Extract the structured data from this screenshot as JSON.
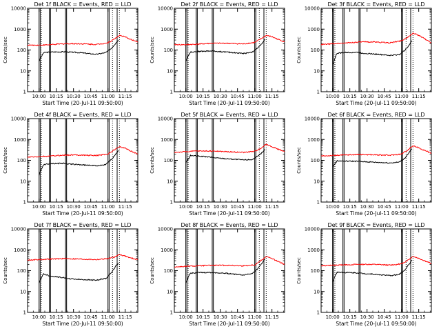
{
  "chart_data": [
    {
      "type": "line",
      "title": "Det 1f BLACK = Events, RED = LLD",
      "xlabel": "Start Time (20-Jul-11 09:50:00)",
      "ylabel": "Counts/sec",
      "y_scale": "log",
      "ylim": [
        1,
        10000
      ],
      "xlim": [
        "09:50",
        "11:26"
      ],
      "y_ticks": [
        "1",
        "10",
        "100",
        "1000",
        "10000"
      ],
      "x_ticks": [
        "10:00",
        "10:15",
        "10:30",
        "10:45",
        "11:00",
        "11:15"
      ],
      "vlines_solid": [
        "10:00",
        "10:01",
        "10:09",
        "10:10",
        "10:23",
        "10:24",
        "11:00",
        "11:01",
        "11:08"
      ],
      "vlines_dotted": [
        "10:02",
        "11:04",
        "11:10"
      ],
      "series": [
        {
          "color": "#000000",
          "x": [
            "10:00",
            "10:03",
            "10:04",
            "10:10",
            "10:23",
            "10:24",
            "10:35",
            "10:50",
            "10:58",
            "11:03",
            "11:07",
            "11:09"
          ],
          "y": [
            30,
            60,
            75,
            80,
            82,
            80,
            75,
            62,
            75,
            120,
            220,
            300
          ]
        },
        {
          "color": "#ff0000",
          "x": [
            "09:50",
            "10:00",
            "10:10",
            "10:23",
            "10:35",
            "10:50",
            "11:00",
            "11:06",
            "11:10",
            "11:15",
            "11:20",
            "11:26"
          ],
          "y": [
            170,
            170,
            180,
            200,
            200,
            185,
            220,
            350,
            500,
            420,
            320,
            240
          ]
        }
      ]
    },
    {
      "type": "line",
      "title": "Det 2f BLACK = Events, RED = LLD",
      "xlabel": "Start Time (20-Jul-11 09:50:00)",
      "ylabel": "Counts/sec",
      "y_scale": "log",
      "ylim": [
        1,
        10000
      ],
      "xlim": [
        "09:50",
        "11:26"
      ],
      "y_ticks": [
        "1",
        "10",
        "100",
        "1000",
        "10000"
      ],
      "x_ticks": [
        "10:00",
        "10:15",
        "10:30",
        "10:45",
        "11:00",
        "11:15"
      ],
      "vlines_solid": [
        "10:00",
        "10:01",
        "10:09",
        "10:10",
        "10:23",
        "10:24",
        "11:00",
        "11:01",
        "11:08"
      ],
      "vlines_dotted": [
        "10:02",
        "11:04",
        "11:10"
      ],
      "series": [
        {
          "color": "#000000",
          "x": [
            "10:00",
            "10:03",
            "10:04",
            "10:10",
            "10:23",
            "10:24",
            "10:35",
            "10:50",
            "10:58",
            "11:03",
            "11:07",
            "11:09"
          ],
          "y": [
            30,
            65,
            80,
            85,
            90,
            88,
            80,
            68,
            80,
            130,
            230,
            320
          ]
        },
        {
          "color": "#ff0000",
          "x": [
            "09:50",
            "10:00",
            "10:10",
            "10:23",
            "10:35",
            "10:50",
            "11:00",
            "11:06",
            "11:10",
            "11:15",
            "11:20",
            "11:26"
          ],
          "y": [
            180,
            180,
            190,
            210,
            210,
            195,
            230,
            360,
            500,
            430,
            330,
            250
          ]
        }
      ]
    },
    {
      "type": "line",
      "title": "Det 3f BLACK = Events, RED = LLD",
      "xlabel": "Start Time (20-Jul-11 09:50:00)",
      "ylabel": "Counts/sec",
      "y_scale": "log",
      "ylim": [
        1,
        10000
      ],
      "xlim": [
        "09:50",
        "11:26"
      ],
      "y_ticks": [
        "1",
        "10",
        "100",
        "1000",
        "10000"
      ],
      "x_ticks": [
        "10:00",
        "10:15",
        "10:30",
        "10:45",
        "11:00",
        "11:15"
      ],
      "vlines_solid": [
        "10:00",
        "10:01",
        "10:09",
        "10:10",
        "10:23",
        "10:24",
        "11:00",
        "11:01",
        "11:08"
      ],
      "vlines_dotted": [
        "10:02",
        "11:04",
        "11:10"
      ],
      "series": [
        {
          "color": "#000000",
          "x": [
            "10:00",
            "10:03",
            "10:04",
            "10:10",
            "10:23",
            "10:24",
            "10:35",
            "10:50",
            "10:58",
            "11:03",
            "11:07",
            "11:09"
          ],
          "y": [
            20,
            55,
            70,
            75,
            78,
            72,
            65,
            55,
            60,
            100,
            180,
            280
          ]
        },
        {
          "color": "#ff0000",
          "x": [
            "09:50",
            "10:00",
            "10:10",
            "10:23",
            "10:35",
            "10:50",
            "11:00",
            "11:06",
            "11:10",
            "11:15",
            "11:20",
            "11:26"
          ],
          "y": [
            180,
            200,
            215,
            240,
            245,
            220,
            280,
            420,
            650,
            500,
            350,
            220
          ]
        }
      ]
    },
    {
      "type": "line",
      "title": "Det 4f BLACK = Events, RED = LLD",
      "xlabel": "Start Time (20-Jul-11 09:50:00)",
      "ylabel": "Counts/sec",
      "y_scale": "log",
      "ylim": [
        1,
        10000
      ],
      "xlim": [
        "09:50",
        "11:26"
      ],
      "y_ticks": [
        "1",
        "10",
        "100",
        "1000",
        "10000"
      ],
      "x_ticks": [
        "10:00",
        "10:15",
        "10:30",
        "10:45",
        "11:00",
        "11:15"
      ],
      "vlines_solid": [
        "10:00",
        "10:01",
        "10:09",
        "10:10",
        "10:23",
        "10:24",
        "11:00",
        "11:01",
        "11:08"
      ],
      "vlines_dotted": [
        "10:02",
        "11:04",
        "11:10"
      ],
      "series": [
        {
          "color": "#000000",
          "x": [
            "10:00",
            "10:03",
            "10:04",
            "10:10",
            "10:23",
            "10:24",
            "10:35",
            "10:50",
            "10:58",
            "11:03",
            "11:07",
            "11:09"
          ],
          "y": [
            20,
            50,
            62,
            70,
            72,
            68,
            62,
            55,
            62,
            110,
            200,
            300
          ]
        },
        {
          "color": "#ff0000",
          "x": [
            "09:50",
            "10:00",
            "10:10",
            "10:23",
            "10:35",
            "10:50",
            "11:00",
            "11:06",
            "11:10",
            "11:15",
            "11:20",
            "11:26"
          ],
          "y": [
            140,
            150,
            160,
            180,
            180,
            170,
            200,
            330,
            450,
            380,
            280,
            200
          ]
        }
      ]
    },
    {
      "type": "line",
      "title": "Det 5f BLACK = Events, RED = LLD",
      "xlabel": "Start Time (20-Jul-11 09:50:00)",
      "ylabel": "Counts/sec",
      "y_scale": "log",
      "ylim": [
        1,
        10000
      ],
      "xlim": [
        "09:50",
        "11:26"
      ],
      "y_ticks": [
        "1",
        "10",
        "100",
        "1000",
        "10000"
      ],
      "x_ticks": [
        "10:00",
        "10:15",
        "10:30",
        "10:45",
        "11:00",
        "11:15"
      ],
      "vlines_solid": [
        "10:00",
        "10:01",
        "10:09",
        "10:10",
        "10:23",
        "10:24",
        "11:00",
        "11:01",
        "11:08"
      ],
      "vlines_dotted": [
        "10:02",
        "11:04",
        "11:10"
      ],
      "series": [
        {
          "color": "#000000",
          "x": [
            "10:00",
            "10:03",
            "10:04",
            "10:10",
            "10:23",
            "10:24",
            "10:35",
            "10:50",
            "10:58",
            "11:03",
            "11:07",
            "11:09"
          ],
          "y": [
            80,
            130,
            170,
            160,
            140,
            135,
            120,
            105,
            110,
            160,
            250,
            330
          ]
        },
        {
          "color": "#ff0000",
          "x": [
            "09:50",
            "10:00",
            "10:10",
            "10:23",
            "10:35",
            "10:50",
            "11:00",
            "11:06",
            "11:10",
            "11:15",
            "11:20",
            "11:26"
          ],
          "y": [
            240,
            260,
            280,
            280,
            260,
            240,
            270,
            400,
            600,
            450,
            350,
            260
          ]
        }
      ]
    },
    {
      "type": "line",
      "title": "Det 6f BLACK = Events, RED = LLD",
      "xlabel": "Start Time (20-Jul-11 09:50:00)",
      "ylabel": "Counts/sec",
      "y_scale": "log",
      "ylim": [
        1,
        10000
      ],
      "xlim": [
        "09:50",
        "11:26"
      ],
      "y_ticks": [
        "1",
        "10",
        "100",
        "1000",
        "10000"
      ],
      "x_ticks": [
        "10:00",
        "10:15",
        "10:30",
        "10:45",
        "11:00",
        "11:15"
      ],
      "vlines_solid": [
        "10:00",
        "10:01",
        "10:09",
        "10:10",
        "10:23",
        "10:24",
        "11:00",
        "11:01",
        "11:08"
      ],
      "vlines_dotted": [
        "10:02",
        "11:04",
        "11:10"
      ],
      "series": [
        {
          "color": "#000000",
          "x": [
            "10:00",
            "10:03",
            "10:04",
            "10:10",
            "10:23",
            "10:24",
            "10:35",
            "10:50",
            "10:58",
            "11:03",
            "11:07",
            "11:09"
          ],
          "y": [
            50,
            80,
            95,
            92,
            90,
            88,
            82,
            75,
            82,
            130,
            250,
            360
          ]
        },
        {
          "color": "#ff0000",
          "x": [
            "09:50",
            "10:00",
            "10:10",
            "10:23",
            "10:35",
            "10:50",
            "11:00",
            "11:06",
            "11:10",
            "11:15",
            "11:20",
            "11:26"
          ],
          "y": [
            160,
            170,
            180,
            190,
            185,
            175,
            200,
            330,
            500,
            400,
            300,
            220
          ]
        }
      ]
    },
    {
      "type": "line",
      "title": "Det 7f BLACK = Events, RED = LLD",
      "xlabel": "Start Time (20-Jul-11 09:50:00)",
      "ylabel": "Counts/sec",
      "y_scale": "log",
      "ylim": [
        1,
        10000
      ],
      "xlim": [
        "09:50",
        "11:26"
      ],
      "y_ticks": [
        "1",
        "10",
        "100",
        "1000",
        "10000"
      ],
      "x_ticks": [
        "10:00",
        "10:15",
        "10:30",
        "10:45",
        "11:00",
        "11:15"
      ],
      "vlines_solid": [
        "10:00",
        "10:01",
        "10:09",
        "10:10",
        "10:23",
        "10:24",
        "11:00",
        "11:01",
        "11:08"
      ],
      "vlines_dotted": [
        "10:02",
        "11:04",
        "11:10"
      ],
      "series": [
        {
          "color": "#000000",
          "x": [
            "10:00",
            "10:03",
            "10:04",
            "10:10",
            "10:23",
            "10:24",
            "10:35",
            "10:50",
            "10:58",
            "11:03",
            "11:07",
            "11:09"
          ],
          "y": [
            25,
            60,
            70,
            55,
            45,
            42,
            38,
            35,
            42,
            80,
            170,
            230
          ]
        },
        {
          "color": "#ff0000",
          "x": [
            "09:50",
            "10:00",
            "10:10",
            "10:23",
            "10:35",
            "10:50",
            "11:00",
            "11:06",
            "11:10",
            "11:15",
            "11:20",
            "11:26"
          ],
          "y": [
            320,
            340,
            360,
            380,
            360,
            340,
            380,
            450,
            600,
            500,
            400,
            340
          ]
        }
      ]
    },
    {
      "type": "line",
      "title": "Det 8f BLACK = Events, RED = LLD",
      "xlabel": "Start Time (20-Jul-11 09:50:00)",
      "ylabel": "Counts/sec",
      "y_scale": "log",
      "ylim": [
        1,
        10000
      ],
      "xlim": [
        "09:50",
        "11:26"
      ],
      "y_ticks": [
        "1",
        "10",
        "100",
        "1000",
        "10000"
      ],
      "x_ticks": [
        "10:00",
        "10:15",
        "10:30",
        "10:45",
        "11:00",
        "11:15"
      ],
      "vlines_solid": [
        "10:00",
        "10:01",
        "10:09",
        "10:10",
        "10:23",
        "10:24",
        "11:00",
        "11:01",
        "11:08"
      ],
      "vlines_dotted": [
        "10:02",
        "11:04",
        "11:10"
      ],
      "series": [
        {
          "color": "#000000",
          "x": [
            "10:00",
            "10:03",
            "10:04",
            "10:10",
            "10:23",
            "10:24",
            "10:35",
            "10:50",
            "10:58",
            "11:03",
            "11:07",
            "11:09"
          ],
          "y": [
            25,
            60,
            75,
            80,
            82,
            80,
            75,
            62,
            75,
            130,
            260,
            360
          ]
        },
        {
          "color": "#ff0000",
          "x": [
            "09:50",
            "10:00",
            "10:10",
            "10:23",
            "10:35",
            "10:50",
            "11:00",
            "11:06",
            "11:10",
            "11:15",
            "11:20",
            "11:26"
          ],
          "y": [
            150,
            160,
            170,
            180,
            180,
            170,
            190,
            320,
            480,
            380,
            280,
            200
          ]
        }
      ]
    },
    {
      "type": "line",
      "title": "Det 9f BLACK = Events, RED = LLD",
      "xlabel": "Start Time (20-Jul-11 09:50:00)",
      "ylabel": "Counts/sec",
      "y_scale": "log",
      "ylim": [
        1,
        10000
      ],
      "xlim": [
        "09:50",
        "11:26"
      ],
      "y_ticks": [
        "1",
        "10",
        "100",
        "1000",
        "10000"
      ],
      "x_ticks": [
        "10:00",
        "10:15",
        "10:30",
        "10:45",
        "11:00",
        "11:15"
      ],
      "vlines_solid": [
        "10:00",
        "10:01",
        "10:09",
        "10:10",
        "10:23",
        "10:24",
        "11:00",
        "11:01",
        "11:08"
      ],
      "vlines_dotted": [
        "10:02",
        "11:04",
        "11:10"
      ],
      "series": [
        {
          "color": "#000000",
          "x": [
            "10:00",
            "10:03",
            "10:04",
            "10:10",
            "10:23",
            "10:24",
            "10:35",
            "10:50",
            "10:58",
            "11:03",
            "11:07",
            "11:09"
          ],
          "y": [
            30,
            70,
            85,
            82,
            78,
            75,
            68,
            58,
            65,
            110,
            220,
            320
          ]
        },
        {
          "color": "#ff0000",
          "x": [
            "09:50",
            "10:00",
            "10:10",
            "10:23",
            "10:35",
            "10:50",
            "11:00",
            "11:06",
            "11:10",
            "11:15",
            "11:20",
            "11:26"
          ],
          "y": [
            170,
            180,
            190,
            200,
            200,
            185,
            210,
            330,
            480,
            390,
            300,
            220
          ]
        }
      ]
    }
  ]
}
